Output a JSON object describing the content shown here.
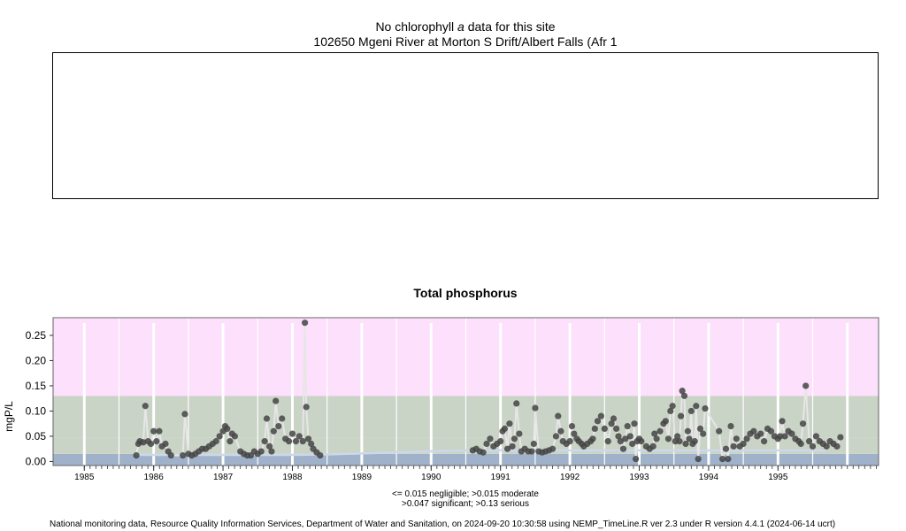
{
  "header": {
    "line1_prefix": "No chlorophyll",
    "line1_italic": "a",
    "line1_suffix": "data for this site",
    "line2": "102650 Mgeni River at Morton S Drift/Albert Falls (Afr 1"
  },
  "legend": {
    "line1": "<= 0.015 negligible; >0.015 moderate",
    "line2": ">0.047 significant; >0.13 serious"
  },
  "footer": "National monitoring data, Resource Quality Information Services, Department of Water and Sanitation, on 2024-09-20 10:30:58 using NEMP_TimeLine.R ver 2.3 under R version 4.4.1 (2024-06-14 ucrt)",
  "colors": {
    "serious": "#fde0fb",
    "significant": "#c9d3c6",
    "moderate": "#c9d3c6",
    "negligible": "#a0b2c9",
    "points": "#444444",
    "line": "#e6e6e6",
    "median": "#ccd8ea"
  },
  "chart_data": {
    "type": "scatter",
    "title": "Total phosphorus",
    "ylabel": "mgP/L",
    "xlabel": "",
    "xlim": [
      1984.55,
      1996.45
    ],
    "ylim": [
      -0.008,
      0.285
    ],
    "xticks": [
      1985,
      1986,
      1987,
      1988,
      1989,
      1990,
      1991,
      1992,
      1993,
      1994,
      1995
    ],
    "yticks": [
      0.0,
      0.05,
      0.1,
      0.15,
      0.2,
      0.25
    ],
    "ytick_labels": [
      "0.00",
      "0.05",
      "0.10",
      "0.15",
      "0.20",
      "0.25"
    ],
    "bands": [
      {
        "name": "negligible",
        "from": -0.008,
        "to": 0.015
      },
      {
        "name": "moderate",
        "from": 0.015,
        "to": 0.047
      },
      {
        "name": "significant",
        "from": 0.047,
        "to": 0.13
      },
      {
        "name": "serious",
        "from": 0.13,
        "to": 0.285
      }
    ],
    "median": [
      [
        1985.75,
        0.013
      ],
      [
        1988.0,
        0.013
      ],
      [
        1988.5,
        0.014
      ],
      [
        1989.0,
        0.016
      ],
      [
        1989.5,
        0.018
      ],
      [
        1990.0,
        0.02
      ],
      [
        1990.5,
        0.022
      ],
      [
        1991.0,
        0.022
      ],
      [
        1992.0,
        0.022
      ],
      [
        1993.0,
        0.022
      ],
      [
        1994.0,
        0.022
      ],
      [
        1995.0,
        0.022
      ],
      [
        1995.7,
        0.022
      ]
    ],
    "points": [
      [
        1985.75,
        0.012
      ],
      [
        1985.78,
        0.035
      ],
      [
        1985.8,
        0.04
      ],
      [
        1985.85,
        0.038
      ],
      [
        1985.88,
        0.11
      ],
      [
        1985.92,
        0.04
      ],
      [
        1985.96,
        0.035
      ],
      [
        1986.0,
        0.06
      ],
      [
        1986.04,
        0.04
      ],
      [
        1986.08,
        0.06
      ],
      [
        1986.12,
        0.03
      ],
      [
        1986.17,
        0.035
      ],
      [
        1986.21,
        0.02
      ],
      [
        1986.25,
        0.012
      ],
      [
        1986.42,
        0.012
      ],
      [
        1986.45,
        0.094
      ],
      [
        1986.5,
        0.015
      ],
      [
        1986.55,
        0.012
      ],
      [
        1986.6,
        0.015
      ],
      [
        1986.65,
        0.02
      ],
      [
        1986.7,
        0.025
      ],
      [
        1986.75,
        0.025
      ],
      [
        1986.8,
        0.03
      ],
      [
        1986.85,
        0.035
      ],
      [
        1986.9,
        0.04
      ],
      [
        1986.95,
        0.05
      ],
      [
        1987.0,
        0.06
      ],
      [
        1987.03,
        0.07
      ],
      [
        1987.06,
        0.065
      ],
      [
        1987.1,
        0.04
      ],
      [
        1987.13,
        0.055
      ],
      [
        1987.17,
        0.05
      ],
      [
        1987.25,
        0.02
      ],
      [
        1987.3,
        0.015
      ],
      [
        1987.35,
        0.012
      ],
      [
        1987.4,
        0.012
      ],
      [
        1987.45,
        0.02
      ],
      [
        1987.5,
        0.015
      ],
      [
        1987.55,
        0.02
      ],
      [
        1987.6,
        0.04
      ],
      [
        1987.63,
        0.085
      ],
      [
        1987.67,
        0.03
      ],
      [
        1987.7,
        0.02
      ],
      [
        1987.73,
        0.06
      ],
      [
        1987.76,
        0.12
      ],
      [
        1987.8,
        0.07
      ],
      [
        1987.85,
        0.085
      ],
      [
        1987.9,
        0.045
      ],
      [
        1987.95,
        0.04
      ],
      [
        1988.0,
        0.055
      ],
      [
        1988.05,
        0.04
      ],
      [
        1988.1,
        0.05
      ],
      [
        1988.15,
        0.04
      ],
      [
        1988.18,
        0.275
      ],
      [
        1988.2,
        0.108
      ],
      [
        1988.23,
        0.045
      ],
      [
        1988.27,
        0.035
      ],
      [
        1988.3,
        0.025
      ],
      [
        1988.35,
        0.018
      ],
      [
        1988.4,
        0.012
      ],
      [
        1990.6,
        0.022
      ],
      [
        1990.65,
        0.025
      ],
      [
        1990.7,
        0.02
      ],
      [
        1990.75,
        0.018
      ],
      [
        1990.8,
        0.035
      ],
      [
        1990.85,
        0.045
      ],
      [
        1990.9,
        0.03
      ],
      [
        1990.95,
        0.035
      ],
      [
        1991.0,
        0.04
      ],
      [
        1991.03,
        0.06
      ],
      [
        1991.06,
        0.065
      ],
      [
        1991.1,
        0.025
      ],
      [
        1991.13,
        0.075
      ],
      [
        1991.17,
        0.03
      ],
      [
        1991.2,
        0.045
      ],
      [
        1991.23,
        0.115
      ],
      [
        1991.27,
        0.055
      ],
      [
        1991.3,
        0.02
      ],
      [
        1991.35,
        0.025
      ],
      [
        1991.4,
        0.02
      ],
      [
        1991.45,
        0.02
      ],
      [
        1991.48,
        0.035
      ],
      [
        1991.5,
        0.106
      ],
      [
        1991.55,
        0.02
      ],
      [
        1991.6,
        0.018
      ],
      [
        1991.65,
        0.02
      ],
      [
        1991.7,
        0.022
      ],
      [
        1991.75,
        0.025
      ],
      [
        1991.8,
        0.05
      ],
      [
        1991.83,
        0.09
      ],
      [
        1991.87,
        0.06
      ],
      [
        1991.9,
        0.04
      ],
      [
        1991.95,
        0.035
      ],
      [
        1992.0,
        0.04
      ],
      [
        1992.03,
        0.07
      ],
      [
        1992.06,
        0.055
      ],
      [
        1992.1,
        0.045
      ],
      [
        1992.13,
        0.04
      ],
      [
        1992.17,
        0.035
      ],
      [
        1992.2,
        0.03
      ],
      [
        1992.25,
        0.035
      ],
      [
        1992.3,
        0.04
      ],
      [
        1992.33,
        0.045
      ],
      [
        1992.36,
        0.065
      ],
      [
        1992.4,
        0.08
      ],
      [
        1992.45,
        0.09
      ],
      [
        1992.5,
        0.065
      ],
      [
        1992.55,
        0.04
      ],
      [
        1992.6,
        0.075
      ],
      [
        1992.63,
        0.085
      ],
      [
        1992.67,
        0.065
      ],
      [
        1992.7,
        0.05
      ],
      [
        1992.73,
        0.04
      ],
      [
        1992.77,
        0.025
      ],
      [
        1992.8,
        0.045
      ],
      [
        1992.83,
        0.07
      ],
      [
        1992.87,
        0.05
      ],
      [
        1992.9,
        0.035
      ],
      [
        1992.93,
        0.075
      ],
      [
        1992.97,
        0.04
      ],
      [
        1993.0,
        0.045
      ],
      [
        1993.03,
        0.04
      ],
      [
        1992.95,
        0.005
      ],
      [
        1993.1,
        0.03
      ],
      [
        1993.15,
        0.025
      ],
      [
        1993.2,
        0.03
      ],
      [
        1993.22,
        0.055
      ],
      [
        1993.25,
        0.045
      ],
      [
        1993.3,
        0.06
      ],
      [
        1993.35,
        0.075
      ],
      [
        1993.38,
        0.08
      ],
      [
        1993.42,
        0.045
      ],
      [
        1993.45,
        0.1
      ],
      [
        1993.48,
        0.11
      ],
      [
        1993.52,
        0.04
      ],
      [
        1993.55,
        0.05
      ],
      [
        1993.58,
        0.04
      ],
      [
        1993.6,
        0.09
      ],
      [
        1993.62,
        0.14
      ],
      [
        1993.65,
        0.13
      ],
      [
        1993.67,
        0.035
      ],
      [
        1993.7,
        0.06
      ],
      [
        1993.72,
        0.045
      ],
      [
        1993.75,
        0.1
      ],
      [
        1993.77,
        0.035
      ],
      [
        1993.8,
        0.04
      ],
      [
        1993.82,
        0.11
      ],
      [
        1993.85,
        0.005
      ],
      [
        1993.88,
        0.065
      ],
      [
        1993.92,
        0.055
      ],
      [
        1993.95,
        0.105
      ],
      [
        1994.15,
        0.06
      ],
      [
        1994.2,
        0.005
      ],
      [
        1994.25,
        0.025
      ],
      [
        1994.28,
        0.005
      ],
      [
        1994.32,
        0.07
      ],
      [
        1994.36,
        0.03
      ],
      [
        1994.4,
        0.045
      ],
      [
        1994.45,
        0.03
      ],
      [
        1994.5,
        0.035
      ],
      [
        1994.55,
        0.045
      ],
      [
        1994.6,
        0.055
      ],
      [
        1994.65,
        0.06
      ],
      [
        1994.7,
        0.05
      ],
      [
        1994.75,
        0.055
      ],
      [
        1994.8,
        0.04
      ],
      [
        1994.85,
        0.065
      ],
      [
        1994.9,
        0.06
      ],
      [
        1994.95,
        0.05
      ],
      [
        1995.0,
        0.045
      ],
      [
        1995.03,
        0.05
      ],
      [
        1995.06,
        0.08
      ],
      [
        1995.1,
        0.05
      ],
      [
        1995.15,
        0.06
      ],
      [
        1995.2,
        0.055
      ],
      [
        1995.25,
        0.045
      ],
      [
        1995.3,
        0.04
      ],
      [
        1995.33,
        0.035
      ],
      [
        1995.36,
        0.075
      ],
      [
        1995.4,
        0.15
      ],
      [
        1995.45,
        0.04
      ],
      [
        1995.5,
        0.03
      ],
      [
        1995.55,
        0.05
      ],
      [
        1995.6,
        0.04
      ],
      [
        1995.65,
        0.035
      ],
      [
        1995.7,
        0.03
      ],
      [
        1995.75,
        0.04
      ],
      [
        1995.8,
        0.035
      ],
      [
        1995.85,
        0.03
      ],
      [
        1995.9,
        0.048
      ]
    ]
  }
}
